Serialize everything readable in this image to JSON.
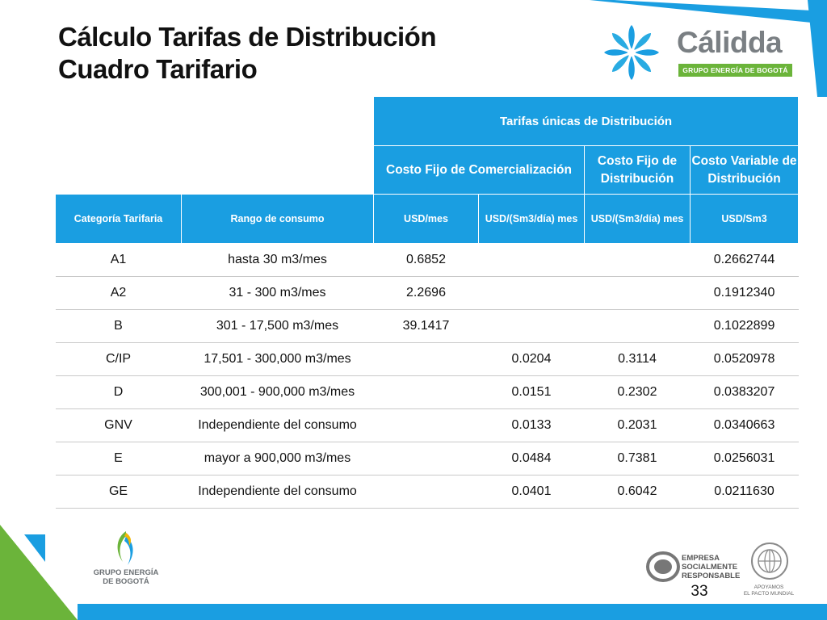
{
  "slide": {
    "title_line1": "Cálculo Tarifas de Distribución",
    "title_line2": "Cuadro Tarifario",
    "page_number": "33"
  },
  "logos": {
    "calidda_name": "Cálidda",
    "calidda_sub": "GRUPO ENERGÍA DE BOGOTÁ",
    "geb_line1": "GRUPO ENERGÍA",
    "geb_line2": "DE BOGOTÁ",
    "esr_line1": "EMPRESA",
    "esr_line2": "SOCIALMENTE",
    "esr_line3": "RESPONSABLE",
    "esr_badge": "ESR",
    "pacto_line1": "APOYAMOS",
    "pacto_line2": "EL PACTO MUNDIAL"
  },
  "colors": {
    "header_blue": "#1a9ee1",
    "accent_green": "#6bb43a",
    "stripe_blue": "#1a9ee1"
  },
  "table": {
    "group_header": "Tarifas únicas de Distribución",
    "sub_headers": [
      "Costo Fijo de Comercialización",
      "Costo Fijo de Distribución",
      "Costo Variable de Distribución"
    ],
    "columns": [
      "Categoría Tarifaria",
      "Rango de consumo",
      "USD/mes",
      "USD/(Sm3/día) mes",
      "USD/(Sm3/día) mes",
      "USD/Sm3"
    ],
    "rows": [
      [
        "A1",
        "hasta 30 m3/mes",
        "0.6852",
        "",
        "",
        "0.2662744"
      ],
      [
        "A2",
        "31 - 300 m3/mes",
        "2.2696",
        "",
        "",
        "0.1912340"
      ],
      [
        "B",
        "301 - 17,500 m3/mes",
        "39.1417",
        "",
        "",
        "0.1022899"
      ],
      [
        "C/IP",
        "17,501 - 300,000 m3/mes",
        "",
        "0.0204",
        "0.3114",
        "0.0520978"
      ],
      [
        "D",
        "300,001 - 900,000 m3/mes",
        "",
        "0.0151",
        "0.2302",
        "0.0383207"
      ],
      [
        "GNV",
        "Independiente del consumo",
        "",
        "0.0133",
        "0.2031",
        "0.0340663"
      ],
      [
        "E",
        "mayor a 900,000 m3/mes",
        "",
        "0.0484",
        "0.7381",
        "0.0256031"
      ],
      [
        "GE",
        "Independiente del consumo",
        "",
        "0.0401",
        "0.6042",
        "0.0211630"
      ]
    ]
  }
}
